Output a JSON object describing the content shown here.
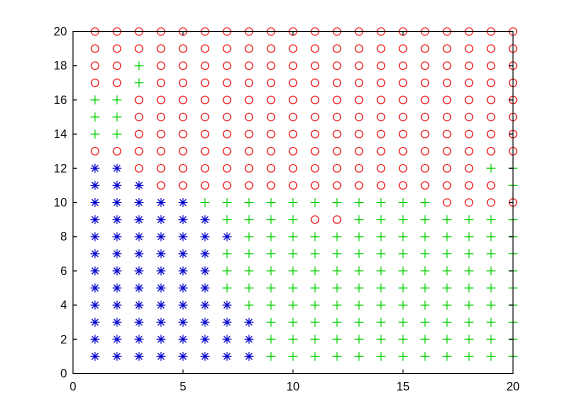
{
  "chart_data": {
    "type": "scatter",
    "title": "",
    "xlabel": "",
    "ylabel": "",
    "xlim": [
      0,
      20
    ],
    "ylim": [
      0,
      20
    ],
    "xticks": [
      0,
      5,
      10,
      15,
      20
    ],
    "yticks": [
      0,
      2,
      4,
      6,
      8,
      10,
      12,
      14,
      16,
      18,
      20
    ],
    "grid": false,
    "legend": "none",
    "grid_x": [
      1,
      20
    ],
    "grid_y": [
      1,
      20
    ],
    "classes": {
      "asterisk": {
        "color": "#0000cc",
        "marker": "asterisk"
      },
      "plus": {
        "color": "#00cc00",
        "marker": "plus"
      },
      "circle": {
        "color": "#ee2222",
        "marker": "circle"
      }
    },
    "series": [
      {
        "marker": "asterisk",
        "points": [
          [
            1,
            1
          ],
          [
            2,
            1
          ],
          [
            3,
            1
          ],
          [
            4,
            1
          ],
          [
            5,
            1
          ],
          [
            6,
            1
          ],
          [
            7,
            1
          ],
          [
            8,
            1
          ],
          [
            1,
            2
          ],
          [
            2,
            2
          ],
          [
            3,
            2
          ],
          [
            4,
            2
          ],
          [
            5,
            2
          ],
          [
            6,
            2
          ],
          [
            7,
            2
          ],
          [
            8,
            2
          ],
          [
            1,
            3
          ],
          [
            2,
            3
          ],
          [
            3,
            3
          ],
          [
            4,
            3
          ],
          [
            5,
            3
          ],
          [
            6,
            3
          ],
          [
            7,
            3
          ],
          [
            8,
            3
          ],
          [
            1,
            4
          ],
          [
            2,
            4
          ],
          [
            3,
            4
          ],
          [
            4,
            4
          ],
          [
            5,
            4
          ],
          [
            6,
            4
          ],
          [
            7,
            4
          ],
          [
            1,
            5
          ],
          [
            2,
            5
          ],
          [
            3,
            5
          ],
          [
            4,
            5
          ],
          [
            5,
            5
          ],
          [
            6,
            5
          ],
          [
            1,
            6
          ],
          [
            2,
            6
          ],
          [
            3,
            6
          ],
          [
            4,
            6
          ],
          [
            5,
            6
          ],
          [
            6,
            6
          ],
          [
            1,
            7
          ],
          [
            2,
            7
          ],
          [
            3,
            7
          ],
          [
            4,
            7
          ],
          [
            5,
            7
          ],
          [
            6,
            7
          ],
          [
            1,
            8
          ],
          [
            2,
            8
          ],
          [
            3,
            8
          ],
          [
            4,
            8
          ],
          [
            5,
            8
          ],
          [
            6,
            8
          ],
          [
            7,
            8
          ],
          [
            1,
            9
          ],
          [
            2,
            9
          ],
          [
            3,
            9
          ],
          [
            4,
            9
          ],
          [
            5,
            9
          ],
          [
            6,
            9
          ],
          [
            1,
            10
          ],
          [
            2,
            10
          ],
          [
            3,
            10
          ],
          [
            4,
            10
          ],
          [
            5,
            10
          ],
          [
            1,
            11
          ],
          [
            2,
            11
          ],
          [
            3,
            11
          ],
          [
            1,
            12
          ],
          [
            2,
            12
          ]
        ]
      },
      {
        "marker": "circle",
        "points": [
          [
            3,
            12
          ],
          [
            4,
            12
          ],
          [
            5,
            12
          ],
          [
            6,
            12
          ],
          [
            7,
            12
          ],
          [
            8,
            12
          ],
          [
            9,
            12
          ],
          [
            10,
            12
          ],
          [
            11,
            12
          ],
          [
            12,
            12
          ],
          [
            13,
            12
          ],
          [
            14,
            12
          ],
          [
            15,
            12
          ],
          [
            16,
            12
          ],
          [
            17,
            12
          ],
          [
            18,
            12
          ],
          [
            4,
            11
          ],
          [
            5,
            11
          ],
          [
            6,
            11
          ],
          [
            7,
            11
          ],
          [
            8,
            11
          ],
          [
            9,
            11
          ],
          [
            10,
            11
          ],
          [
            11,
            11
          ],
          [
            12,
            11
          ],
          [
            13,
            11
          ],
          [
            14,
            11
          ],
          [
            15,
            11
          ],
          [
            16,
            11
          ],
          [
            17,
            11
          ],
          [
            18,
            11
          ],
          [
            19,
            11
          ],
          [
            17,
            10
          ],
          [
            18,
            10
          ],
          [
            19,
            10
          ],
          [
            20,
            10
          ],
          [
            11,
            9
          ],
          [
            12,
            9
          ],
          [
            1,
            13
          ],
          [
            2,
            13
          ],
          [
            3,
            13
          ],
          [
            4,
            13
          ],
          [
            5,
            13
          ],
          [
            6,
            13
          ],
          [
            7,
            13
          ],
          [
            8,
            13
          ],
          [
            9,
            13
          ],
          [
            10,
            13
          ],
          [
            11,
            13
          ],
          [
            12,
            13
          ],
          [
            13,
            13
          ],
          [
            14,
            13
          ],
          [
            15,
            13
          ],
          [
            16,
            13
          ],
          [
            17,
            13
          ],
          [
            18,
            13
          ],
          [
            19,
            13
          ],
          [
            20,
            13
          ],
          [
            3,
            14
          ],
          [
            4,
            14
          ],
          [
            5,
            14
          ],
          [
            6,
            14
          ],
          [
            7,
            14
          ],
          [
            8,
            14
          ],
          [
            9,
            14
          ],
          [
            10,
            14
          ],
          [
            11,
            14
          ],
          [
            12,
            14
          ],
          [
            13,
            14
          ],
          [
            14,
            14
          ],
          [
            15,
            14
          ],
          [
            16,
            14
          ],
          [
            17,
            14
          ],
          [
            18,
            14
          ],
          [
            19,
            14
          ],
          [
            20,
            14
          ],
          [
            3,
            15
          ],
          [
            4,
            15
          ],
          [
            5,
            15
          ],
          [
            6,
            15
          ],
          [
            7,
            15
          ],
          [
            8,
            15
          ],
          [
            9,
            15
          ],
          [
            10,
            15
          ],
          [
            11,
            15
          ],
          [
            12,
            15
          ],
          [
            13,
            15
          ],
          [
            14,
            15
          ],
          [
            15,
            15
          ],
          [
            16,
            15
          ],
          [
            17,
            15
          ],
          [
            18,
            15
          ],
          [
            19,
            15
          ],
          [
            20,
            15
          ],
          [
            3,
            16
          ],
          [
            4,
            16
          ],
          [
            5,
            16
          ],
          [
            6,
            16
          ],
          [
            7,
            16
          ],
          [
            8,
            16
          ],
          [
            9,
            16
          ],
          [
            10,
            16
          ],
          [
            11,
            16
          ],
          [
            12,
            16
          ],
          [
            13,
            16
          ],
          [
            14,
            16
          ],
          [
            15,
            16
          ],
          [
            16,
            16
          ],
          [
            17,
            16
          ],
          [
            18,
            16
          ],
          [
            19,
            16
          ],
          [
            20,
            16
          ],
          [
            1,
            17
          ],
          [
            2,
            17
          ],
          [
            4,
            17
          ],
          [
            5,
            17
          ],
          [
            6,
            17
          ],
          [
            7,
            17
          ],
          [
            8,
            17
          ],
          [
            9,
            17
          ],
          [
            10,
            17
          ],
          [
            11,
            17
          ],
          [
            12,
            17
          ],
          [
            13,
            17
          ],
          [
            14,
            17
          ],
          [
            15,
            17
          ],
          [
            16,
            17
          ],
          [
            17,
            17
          ],
          [
            18,
            17
          ],
          [
            19,
            17
          ],
          [
            20,
            17
          ],
          [
            1,
            18
          ],
          [
            2,
            18
          ],
          [
            4,
            18
          ],
          [
            5,
            18
          ],
          [
            6,
            18
          ],
          [
            7,
            18
          ],
          [
            8,
            18
          ],
          [
            9,
            18
          ],
          [
            10,
            18
          ],
          [
            11,
            18
          ],
          [
            12,
            18
          ],
          [
            13,
            18
          ],
          [
            14,
            18
          ],
          [
            15,
            18
          ],
          [
            16,
            18
          ],
          [
            17,
            18
          ],
          [
            18,
            18
          ],
          [
            19,
            18
          ],
          [
            20,
            18
          ],
          [
            1,
            19
          ],
          [
            2,
            19
          ],
          [
            3,
            19
          ],
          [
            4,
            19
          ],
          [
            5,
            19
          ],
          [
            6,
            19
          ],
          [
            7,
            19
          ],
          [
            8,
            19
          ],
          [
            9,
            19
          ],
          [
            10,
            19
          ],
          [
            11,
            19
          ],
          [
            12,
            19
          ],
          [
            13,
            19
          ],
          [
            14,
            19
          ],
          [
            15,
            19
          ],
          [
            16,
            19
          ],
          [
            17,
            19
          ],
          [
            18,
            19
          ],
          [
            19,
            19
          ],
          [
            20,
            19
          ],
          [
            1,
            20
          ],
          [
            2,
            20
          ],
          [
            3,
            20
          ],
          [
            4,
            20
          ],
          [
            5,
            20
          ],
          [
            6,
            20
          ],
          [
            7,
            20
          ],
          [
            8,
            20
          ],
          [
            9,
            20
          ],
          [
            10,
            20
          ],
          [
            11,
            20
          ],
          [
            12,
            20
          ],
          [
            13,
            20
          ],
          [
            14,
            20
          ],
          [
            15,
            20
          ],
          [
            16,
            20
          ],
          [
            17,
            20
          ],
          [
            18,
            20
          ],
          [
            19,
            20
          ],
          [
            20,
            20
          ]
        ]
      },
      {
        "marker": "plus",
        "default_fill": true
      }
    ]
  }
}
